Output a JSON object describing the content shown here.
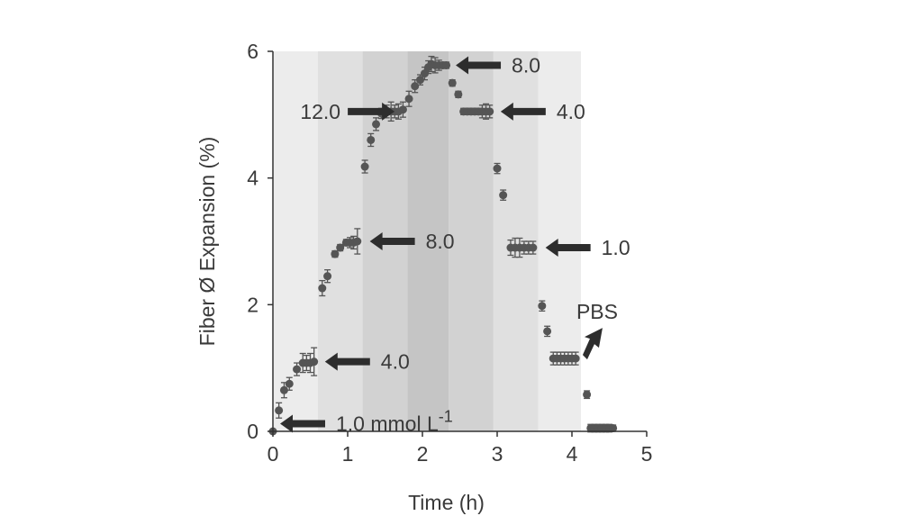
{
  "chart_data": {
    "type": "scatter",
    "xlabel": "Time (h)",
    "ylabel": "Fiber Ø Expansion (%)",
    "xlim": [
      0,
      5
    ],
    "ylim": [
      0,
      6
    ],
    "xticks": [
      "0",
      "1",
      "2",
      "3",
      "4",
      "5"
    ],
    "yticks": [
      "0",
      "2",
      "4",
      "6"
    ],
    "grid": false,
    "legend": "none",
    "marker_color": "#555555",
    "background_bands": [
      {
        "x0": 0.0,
        "x1": 0.6,
        "color": "#ececec"
      },
      {
        "x0": 0.6,
        "x1": 1.2,
        "color": "#e0e0e0"
      },
      {
        "x0": 1.2,
        "x1": 1.8,
        "color": "#d2d2d2"
      },
      {
        "x0": 1.8,
        "x1": 2.35,
        "color": "#c5c5c5"
      },
      {
        "x0": 2.35,
        "x1": 2.95,
        "color": "#d2d2d2"
      },
      {
        "x0": 2.95,
        "x1": 3.55,
        "color": "#e0e0e0"
      },
      {
        "x0": 3.55,
        "x1": 4.12,
        "color": "#ececec"
      }
    ],
    "series": [
      {
        "x": [
          0.0,
          0.08,
          0.15,
          0.22,
          0.32,
          0.4,
          0.45,
          0.5,
          0.55,
          0.66,
          0.73,
          0.83,
          0.9,
          0.98,
          1.03,
          1.08,
          1.13,
          1.23,
          1.31,
          1.38,
          1.45,
          1.52,
          1.58,
          1.63,
          1.68,
          1.74,
          1.82,
          1.9,
          1.97,
          2.03,
          2.08,
          2.12,
          2.17,
          2.22,
          2.27,
          2.32,
          2.4,
          2.48,
          2.55,
          2.6,
          2.65,
          2.7,
          2.75,
          2.8,
          2.85,
          2.9,
          3.0,
          3.08,
          3.18,
          3.24,
          3.3,
          3.36,
          3.42,
          3.48,
          3.6,
          3.67,
          3.75,
          3.8,
          3.85,
          3.9,
          3.95,
          4.0,
          4.05,
          4.2,
          4.25,
          4.3,
          4.35,
          4.4,
          4.45,
          4.5,
          4.55
        ],
        "y": [
          0.0,
          0.33,
          0.65,
          0.75,
          0.98,
          1.08,
          1.08,
          1.08,
          1.1,
          2.26,
          2.45,
          2.8,
          2.9,
          2.98,
          2.98,
          2.98,
          3.0,
          4.18,
          4.6,
          4.85,
          5.02,
          5.05,
          5.05,
          5.05,
          5.05,
          5.08,
          5.25,
          5.45,
          5.55,
          5.65,
          5.75,
          5.8,
          5.78,
          5.78,
          5.78,
          5.78,
          5.5,
          5.32,
          5.05,
          5.05,
          5.05,
          5.05,
          5.05,
          5.05,
          5.05,
          5.05,
          4.15,
          3.73,
          2.9,
          2.9,
          2.9,
          2.9,
          2.9,
          2.9,
          1.98,
          1.58,
          1.15,
          1.15,
          1.15,
          1.15,
          1.15,
          1.15,
          1.15,
          0.58,
          0.05,
          0.05,
          0.05,
          0.05,
          0.05,
          0.05,
          0.05
        ],
        "err": [
          0.0,
          0.12,
          0.12,
          0.1,
          0.1,
          0.15,
          0.12,
          0.15,
          0.22,
          0.12,
          0.1,
          0.05,
          0.05,
          0.05,
          0.08,
          0.1,
          0.2,
          0.1,
          0.1,
          0.1,
          0.08,
          0.1,
          0.15,
          0.1,
          0.12,
          0.12,
          0.12,
          0.1,
          0.08,
          0.1,
          0.1,
          0.12,
          0.12,
          0.08,
          0.05,
          0.05,
          0.05,
          0.05,
          0.05,
          0.05,
          0.05,
          0.05,
          0.05,
          0.1,
          0.12,
          0.1,
          0.08,
          0.08,
          0.12,
          0.15,
          0.15,
          0.1,
          0.1,
          0.1,
          0.08,
          0.08,
          0.1,
          0.1,
          0.1,
          0.1,
          0.1,
          0.1,
          0.1,
          0.06,
          0.06,
          0.06,
          0.06,
          0.06,
          0.06,
          0.06,
          0.05
        ]
      }
    ],
    "annotations": [
      {
        "text": "1.0 mmol L",
        "sup": "-1",
        "x": 0.0,
        "y": 0.12
      },
      {
        "text": "4.0",
        "x": 0.6,
        "y": 1.1
      },
      {
        "text": "8.0",
        "x": 1.2,
        "y": 3.0
      },
      {
        "text": "12.0",
        "x": 1.7,
        "y": 5.05
      },
      {
        "text": "8.0",
        "x": 2.35,
        "y": 5.78
      },
      {
        "text": "4.0",
        "x": 2.95,
        "y": 5.05
      },
      {
        "text": "1.0",
        "x": 3.55,
        "y": 2.9
      },
      {
        "text": "PBS",
        "x": 4.12,
        "y": 1.15
      }
    ]
  }
}
